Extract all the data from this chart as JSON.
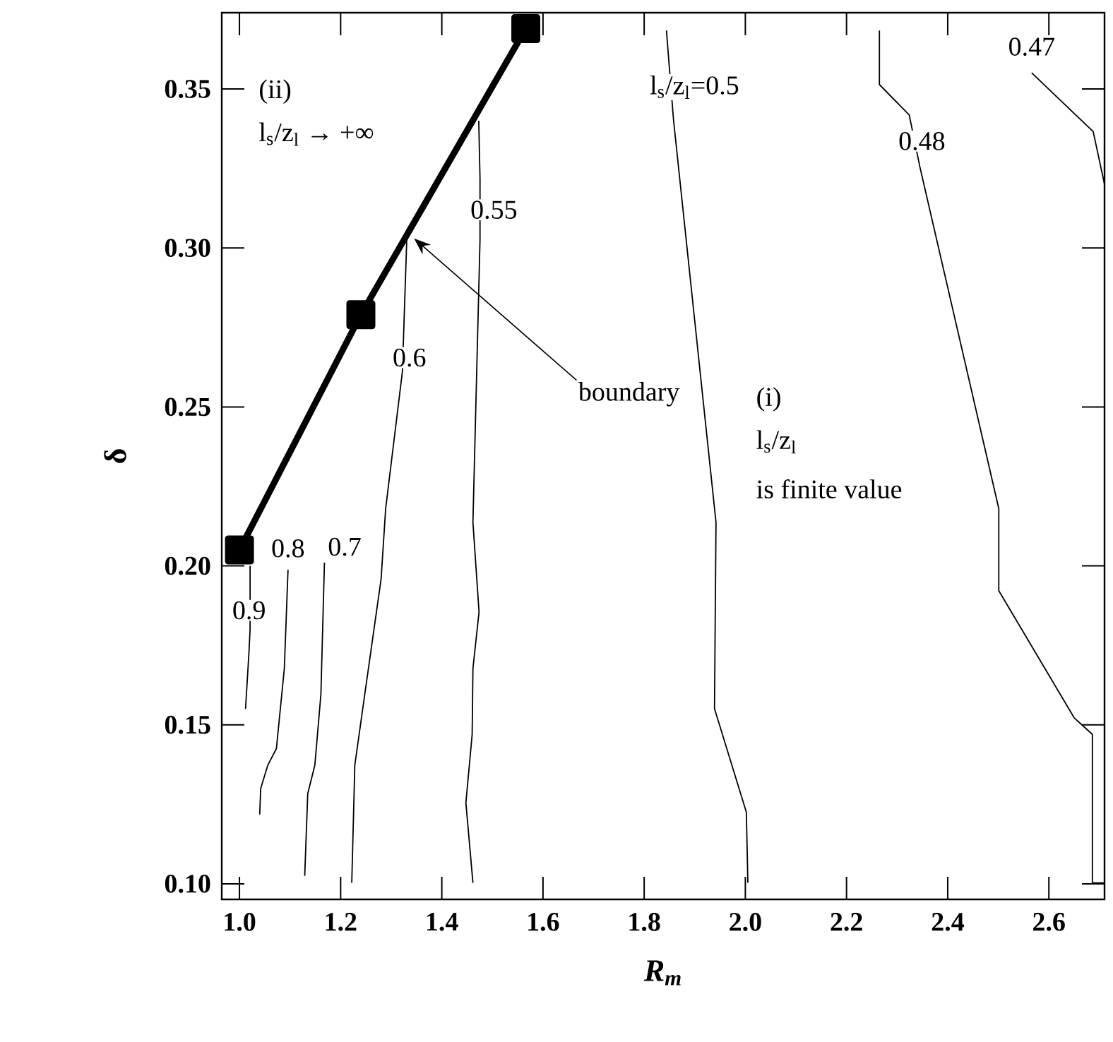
{
  "chart_data": {
    "type": "line",
    "xlabel": "R$_{m}$",
    "ylabel": "δ",
    "xlim": [
      0.965,
      2.71
    ],
    "ylim": [
      0.0951,
      0.374
    ],
    "xticks": [
      {
        "value": 1.0,
        "label": "1.0"
      },
      {
        "value": 1.2,
        "label": "1.2"
      },
      {
        "value": 1.4,
        "label": "1.4"
      },
      {
        "value": 1.6,
        "label": "1.6"
      },
      {
        "value": 1.8,
        "label": "1.8"
      },
      {
        "value": 2.0,
        "label": "2.0"
      },
      {
        "value": 2.2,
        "label": "2.2"
      },
      {
        "value": 2.4,
        "label": "2.4"
      },
      {
        "value": 2.6,
        "label": "2.6"
      }
    ],
    "yticks": [
      {
        "value": 0.1,
        "label": "0.10"
      },
      {
        "value": 0.15,
        "label": "0.15"
      },
      {
        "value": 0.2,
        "label": "0.20"
      },
      {
        "value": 0.25,
        "label": "0.25"
      },
      {
        "value": 0.3,
        "label": "0.30"
      },
      {
        "value": 0.35,
        "label": "0.35"
      }
    ],
    "grid": false,
    "series": [
      {
        "color": "#000000",
        "marker": "square",
        "x": [
          1.0,
          1.24,
          1.566
        ],
        "values": [
          0.205,
          0.279,
          0.369
        ]
      },
      {
        "color": "#000000",
        "x": [
          1.021,
          1.021,
          1.0185,
          1.012
        ],
        "values": [
          0.2,
          0.18,
          0.172,
          0.155
        ]
      },
      {
        "color": "#000000",
        "x": [
          1.096,
          1.0887,
          1.073,
          1.056,
          1.042,
          1.04
        ],
        "values": [
          0.1988,
          0.1677,
          0.1425,
          0.1373,
          0.13,
          0.1218
        ]
      },
      {
        "color": "#000000",
        "x": [
          1.168,
          1.161,
          1.149,
          1.135,
          1.129
        ],
        "values": [
          0.201,
          0.1596,
          0.1373,
          0.1284,
          0.1025
        ]
      },
      {
        "color": "#000000",
        "x": [
          1.331,
          1.322,
          1.289,
          1.28,
          1.247,
          1.228,
          1.222
        ],
        "values": [
          0.304,
          0.261,
          0.218,
          0.1959,
          0.1588,
          0.1373,
          0.1003
        ]
      },
      {
        "color": "#000000",
        "x": [
          1.473,
          1.4755,
          1.4755,
          1.4615,
          1.4736,
          1.4615,
          1.46,
          1.4476,
          1.4615
        ],
        "values": [
          0.34,
          0.3218,
          0.3025,
          0.2137,
          0.1855,
          0.1677,
          0.147,
          0.1255,
          0.1003
        ]
      },
      {
        "color": "#000000",
        "x": [
          1.844,
          1.858,
          1.942,
          1.939,
          2.002,
          2.005
        ],
        "values": [
          0.3684,
          0.3403,
          0.2137,
          0.1551,
          0.1225,
          0.1003
        ]
      },
      {
        "color": "#000000",
        "x": [
          2.265,
          2.265,
          2.324,
          2.345,
          2.501,
          2.501,
          2.65,
          2.686,
          2.686,
          2.71
        ],
        "values": [
          0.3684,
          0.3514,
          0.3418,
          0.3255,
          0.218,
          0.1922,
          0.1522,
          0.147,
          0.1003,
          0.1003
        ]
      },
      {
        "color": "#000000",
        "x": [
          2.566,
          2.6876,
          2.71
        ],
        "values": [
          0.3551,
          0.3366,
          0.32
        ]
      }
    ],
    "annotations": [
      {
        "text": "0.9",
        "x": 1.019,
        "y": 0.186
      },
      {
        "text": "0.8",
        "x": 1.096,
        "y": 0.2055
      },
      {
        "text": "0.7",
        "x": 1.208,
        "y": 0.206
      },
      {
        "text": "0.6",
        "x": 1.336,
        "y": 0.2655
      },
      {
        "text": "0.55",
        "x": 1.503,
        "y": 0.312
      },
      "l$_{s}$/z$_{l}$=0.5",
      {
        "text": "0.48",
        "x": 2.349,
        "y": 0.3336
      },
      {
        "text": "0.47",
        "x": 2.566,
        "y": 0.3633
      },
      {
        "text": "boundary",
        "x": 1.345,
        "y": 0.303
      },
      "(ii)",
      "l$_{s}$/z$_{l}$ → +∞",
      "(i)",
      "l$_{s}$/z$_{l}$",
      "is finite value"
    ]
  }
}
